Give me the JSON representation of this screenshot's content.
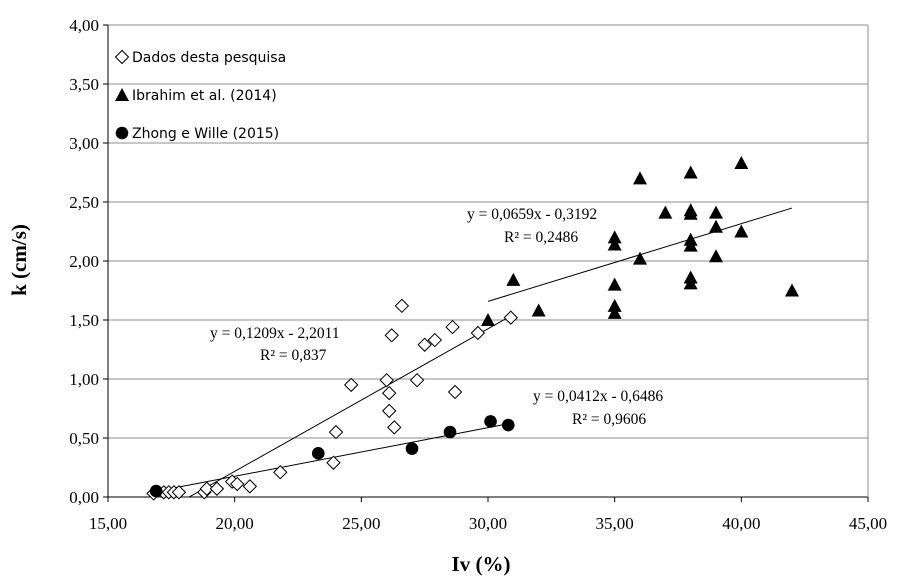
{
  "chart_data": {
    "type": "scatter",
    "xlabel": "Iv (%)",
    "ylabel": "k (cm/s)",
    "xlim": [
      15,
      45
    ],
    "ylim": [
      0,
      4
    ],
    "x_ticks": [
      "15,00",
      "20,00",
      "25,00",
      "30,00",
      "35,00",
      "40,00",
      "45,00"
    ],
    "y_ticks": [
      "0,00",
      "0,50",
      "1,00",
      "1,50",
      "2,00",
      "2,50",
      "3,00",
      "3,50",
      "4,00"
    ],
    "grid": "horizontal",
    "legend_position": "top-left",
    "series": [
      {
        "name": "Dados desta pesquisa",
        "marker": "diamond-open",
        "color": "#000000",
        "points": [
          [
            16.8,
            0.03
          ],
          [
            17.2,
            0.04
          ],
          [
            17.4,
            0.04
          ],
          [
            17.6,
            0.04
          ],
          [
            17.8,
            0.04
          ],
          [
            18.8,
            0.04
          ],
          [
            18.9,
            0.07
          ],
          [
            19.3,
            0.07
          ],
          [
            19.9,
            0.13
          ],
          [
            20.1,
            0.11
          ],
          [
            20.6,
            0.09
          ],
          [
            21.8,
            0.21
          ],
          [
            23.9,
            0.29
          ],
          [
            24.0,
            0.55
          ],
          [
            24.6,
            0.95
          ],
          [
            26.0,
            0.99
          ],
          [
            26.1,
            0.88
          ],
          [
            26.1,
            0.73
          ],
          [
            26.2,
            1.37
          ],
          [
            26.3,
            0.59
          ],
          [
            26.6,
            1.62
          ],
          [
            27.2,
            0.99
          ],
          [
            27.5,
            1.29
          ],
          [
            27.9,
            1.33
          ],
          [
            28.6,
            1.44
          ],
          [
            28.7,
            0.89
          ],
          [
            29.6,
            1.39
          ],
          [
            30.9,
            1.52
          ]
        ],
        "trendline": {
          "slope": 0.1209,
          "intercept": -2.2011,
          "x_range": [
            18.2,
            30.9
          ],
          "equation": "y = 0,1209x  - 2,2011",
          "r2": "R² = 0,837"
        }
      },
      {
        "name": "Ibrahim et al. (2014)",
        "marker": "triangle-filled",
        "color": "#000000",
        "points": [
          [
            30.0,
            1.5
          ],
          [
            31.0,
            1.84
          ],
          [
            32.0,
            1.58
          ],
          [
            35.0,
            1.56
          ],
          [
            35.0,
            1.62
          ],
          [
            35.0,
            1.8
          ],
          [
            35.0,
            2.14
          ],
          [
            35.0,
            2.2
          ],
          [
            36.0,
            2.02
          ],
          [
            36.0,
            2.7
          ],
          [
            37.0,
            2.41
          ],
          [
            38.0,
            1.81
          ],
          [
            38.0,
            1.86
          ],
          [
            38.0,
            2.13
          ],
          [
            38.0,
            2.18
          ],
          [
            38.0,
            2.4
          ],
          [
            38.0,
            2.43
          ],
          [
            38.0,
            2.75
          ],
          [
            39.0,
            2.04
          ],
          [
            39.0,
            2.29
          ],
          [
            39.0,
            2.41
          ],
          [
            40.0,
            2.25
          ],
          [
            40.0,
            2.83
          ],
          [
            42.0,
            1.75
          ]
        ],
        "trendline": {
          "slope": 0.0659,
          "intercept": -0.3192,
          "x_range": [
            30.0,
            42.0
          ],
          "equation": "y = 0,0659x  - 0,3192",
          "r2": "R² = 0,2486"
        }
      },
      {
        "name": "Zhong e Wille (2015)",
        "marker": "circle-filled",
        "color": "#000000",
        "points": [
          [
            16.9,
            0.05
          ],
          [
            23.3,
            0.37
          ],
          [
            27.0,
            0.41
          ],
          [
            28.5,
            0.55
          ],
          [
            30.1,
            0.64
          ],
          [
            30.8,
            0.61
          ]
        ],
        "trendline": {
          "slope": 0.0412,
          "intercept": -0.6486,
          "x_range": [
            16.9,
            30.8
          ],
          "equation": "y = 0,0412x  - 0,6486",
          "r2": "R² = 0,9606"
        }
      }
    ]
  }
}
